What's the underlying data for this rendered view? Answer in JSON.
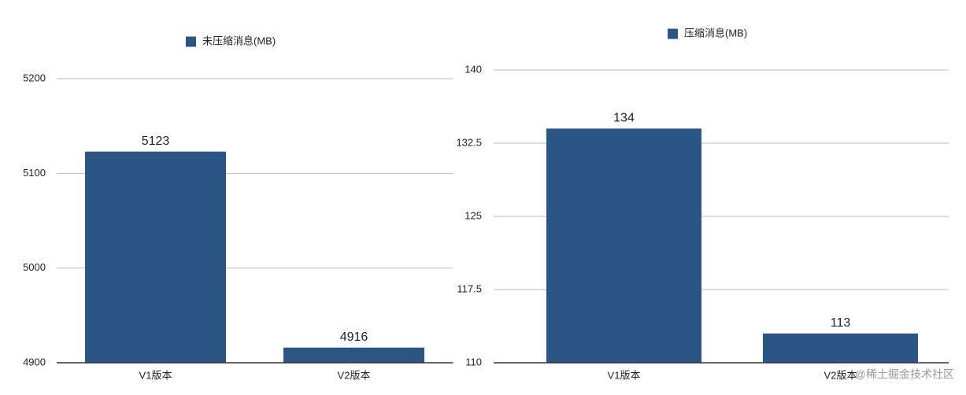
{
  "chart_data": [
    {
      "type": "bar",
      "legend": "未压缩消息(MB)",
      "categories": [
        "V1版本",
        "V2版本"
      ],
      "values": [
        5123,
        4916
      ],
      "color": "#2b5585",
      "ylim": [
        4900,
        5200
      ],
      "yticks": [
        4900,
        5000,
        5100,
        5200
      ],
      "grid": true
    },
    {
      "type": "bar",
      "legend": "压缩消息(MB)",
      "categories": [
        "V1版本",
        "V2版本"
      ],
      "values": [
        134,
        113
      ],
      "color": "#2b5585",
      "ylim": [
        110,
        140
      ],
      "yticks": [
        110,
        117.5,
        125,
        132.5,
        140
      ],
      "grid": true
    }
  ],
  "watermark": "@稀土掘金技术社区"
}
